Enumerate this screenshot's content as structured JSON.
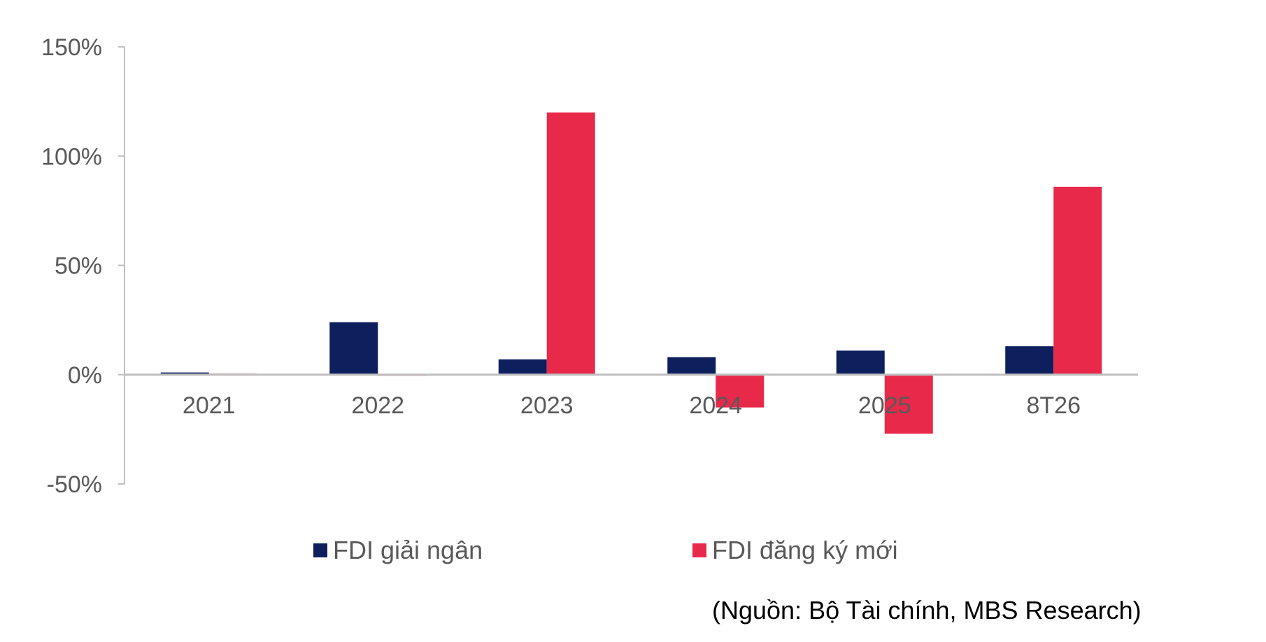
{
  "chart_data": {
    "type": "bar",
    "categories": [
      "2021",
      "2022",
      "2023",
      "2024",
      "2025",
      "8T26"
    ],
    "series": [
      {
        "name": "FDI giải ngân",
        "color": "#0d1f5c",
        "values": [
          1,
          24,
          7,
          8,
          11,
          13
        ]
      },
      {
        "name": "FDI đăng ký mới",
        "color": "#e8294a",
        "values": [
          0.5,
          -0.5,
          120,
          -15,
          -27,
          86
        ]
      }
    ],
    "ylim": [
      -50,
      150
    ],
    "yticks": [
      150,
      100,
      50,
      0,
      -50
    ],
    "ytick_labels": [
      "150%",
      "100%",
      "50%",
      "0%",
      "-50%"
    ],
    "grid": false,
    "legend_position": "bottom",
    "title": "",
    "xlabel": "",
    "ylabel": ""
  },
  "source_note": "(Nguồn: Bộ Tài chính, MBS Research)"
}
